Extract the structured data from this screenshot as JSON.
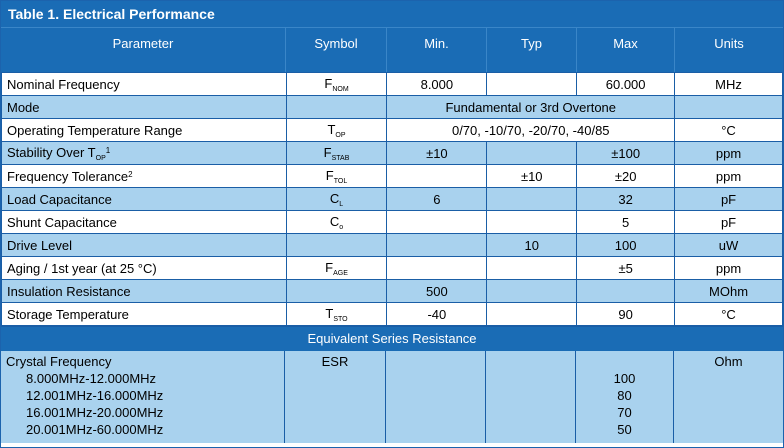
{
  "table_title": "Table 1. Electrical Performance",
  "headers": {
    "parameter": "Parameter",
    "symbol": "Symbol",
    "min": "Min.",
    "typ": "Typ",
    "max": "Max",
    "units": "Units"
  },
  "rows": {
    "nominal_frequency": {
      "param": "Nominal Frequency",
      "sym_base": "F",
      "sym_sub": "NOM",
      "min": "8.000",
      "typ": "",
      "max": "60.000",
      "units": "MHz"
    },
    "mode": {
      "param": "Mode",
      "value": "Fundamental or 3rd Overtone"
    },
    "op_temp": {
      "param": "Operating Temperature Range",
      "sym_base": "T",
      "sym_sub": "OP",
      "value": "0/70, -10/70, -20/70, -40/85",
      "units": "°C"
    },
    "stability": {
      "param_main": "Stability Over T",
      "param_sub": "OP",
      "param_sup": "1",
      "sym_base": "F",
      "sym_sub": "STAB",
      "min": "±10",
      "typ": "",
      "max": "±100",
      "units": "ppm"
    },
    "freq_tolerance": {
      "param_main": "Frequency Tolerance",
      "param_sup": "2",
      "sym_base": "F",
      "sym_sub": "TOL",
      "min": "",
      "typ": "±10",
      "max": "±20",
      "units": "ppm"
    },
    "load_cap": {
      "param": "Load Capacitance",
      "sym_base": "C",
      "sym_sub": "L",
      "min": "6",
      "typ": "",
      "max": "32",
      "units": "pF"
    },
    "shunt_cap": {
      "param": "Shunt Capacitance",
      "sym_base": "C",
      "sym_sub": "o",
      "min": "",
      "typ": "",
      "max": "5",
      "units": "pF"
    },
    "drive_level": {
      "param": "Drive Level",
      "min": "",
      "typ": "10",
      "max": "100",
      "units": "uW"
    },
    "aging": {
      "param": "Aging / 1st year (at 25 °C)",
      "sym_base": "F",
      "sym_sub": "AGE",
      "min": "",
      "typ": "",
      "max": "±5",
      "units": "ppm"
    },
    "insulation": {
      "param": "Insulation Resistance",
      "min": "500",
      "typ": "",
      "max": "",
      "units": "MOhm"
    },
    "storage_temp": {
      "param": "Storage Temperature",
      "sym_base": "T",
      "sym_sub": "STO",
      "min": "-40",
      "typ": "",
      "max": "90",
      "units": "°C"
    }
  },
  "esr": {
    "section_title": "Equivalent Series Resistance",
    "param": "Crystal Frequency",
    "symbol": "ESR",
    "units": "Ohm",
    "ranges": [
      "8.000MHz-12.000MHz",
      "12.001MHz-16.000MHz",
      "16.001MHz-20.000MHz",
      "20.001MHz-60.000MHz"
    ],
    "values": [
      "100",
      "80",
      "70",
      "50"
    ]
  }
}
